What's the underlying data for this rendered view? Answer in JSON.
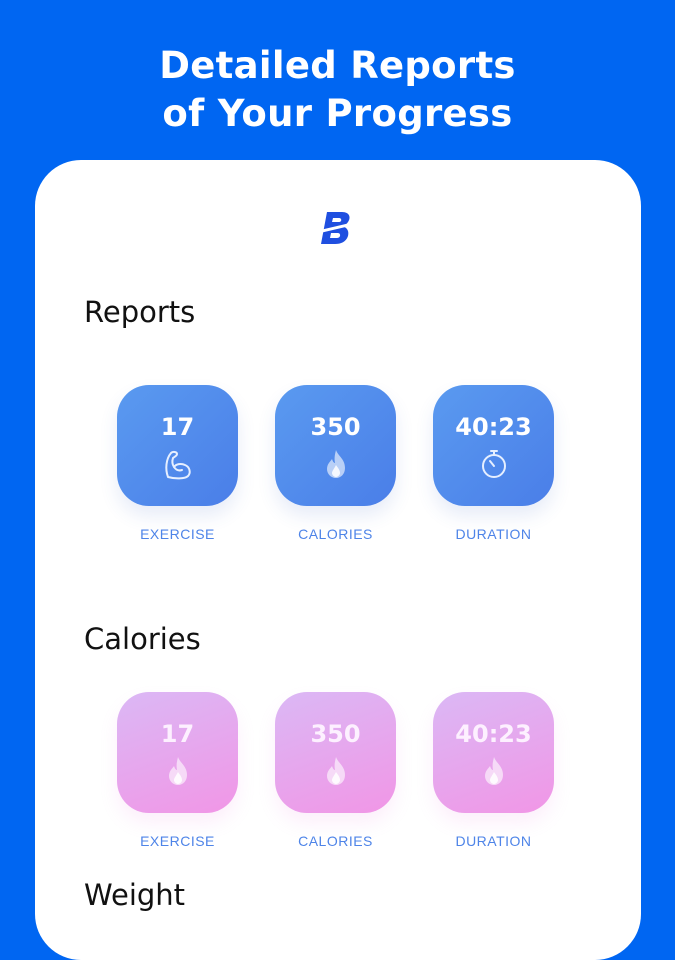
{
  "headline": {
    "line1": "Detailed Reports",
    "line2": "of Your Progress"
  },
  "logo": {
    "letter": "B",
    "color": "#1f4fe0"
  },
  "sections": [
    {
      "title": "Reports",
      "style": "blue",
      "tiles": [
        {
          "value": "17",
          "icon": "bicep-icon",
          "label": "EXERCISE"
        },
        {
          "value": "350",
          "icon": "flame-icon",
          "label": "CALORIES"
        },
        {
          "value": "40:23",
          "icon": "stopwatch-icon",
          "label": "DURATION"
        }
      ]
    },
    {
      "title": "Calories",
      "style": "pink",
      "tiles": [
        {
          "value": "17",
          "icon": "flame-icon",
          "label": "EXERCISE"
        },
        {
          "value": "350",
          "icon": "flame-icon",
          "label": "CALORIES"
        },
        {
          "value": "40:23",
          "icon": "flame-icon",
          "label": "DURATION"
        }
      ]
    },
    {
      "title": "Weight"
    }
  ],
  "colors": {
    "background": "#0066f2",
    "tile_blue": "#4f88ec",
    "tile_pink": "#ea9fe9",
    "label": "#4e84e8"
  }
}
